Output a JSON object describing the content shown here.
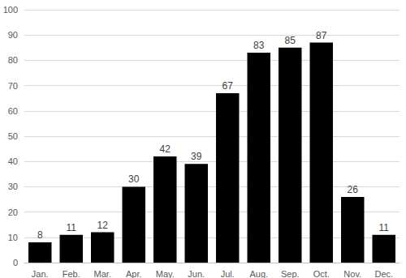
{
  "chart_data": {
    "type": "bar",
    "categories": [
      "Jan.",
      "Feb.",
      "Mar.",
      "Apr.",
      "May.",
      "Jun.",
      "Jul.",
      "Aug.",
      "Sep.",
      "Oct.",
      "Nov.",
      "Dec."
    ],
    "values": [
      8,
      11,
      12,
      30,
      42,
      39,
      67,
      83,
      85,
      87,
      26,
      11
    ],
    "color": "#000000",
    "ylim": [
      0,
      100
    ],
    "yticks": [
      0,
      10,
      20,
      30,
      40,
      50,
      60,
      70,
      80,
      90,
      100
    ],
    "grid": true,
    "data_labels": true
  }
}
